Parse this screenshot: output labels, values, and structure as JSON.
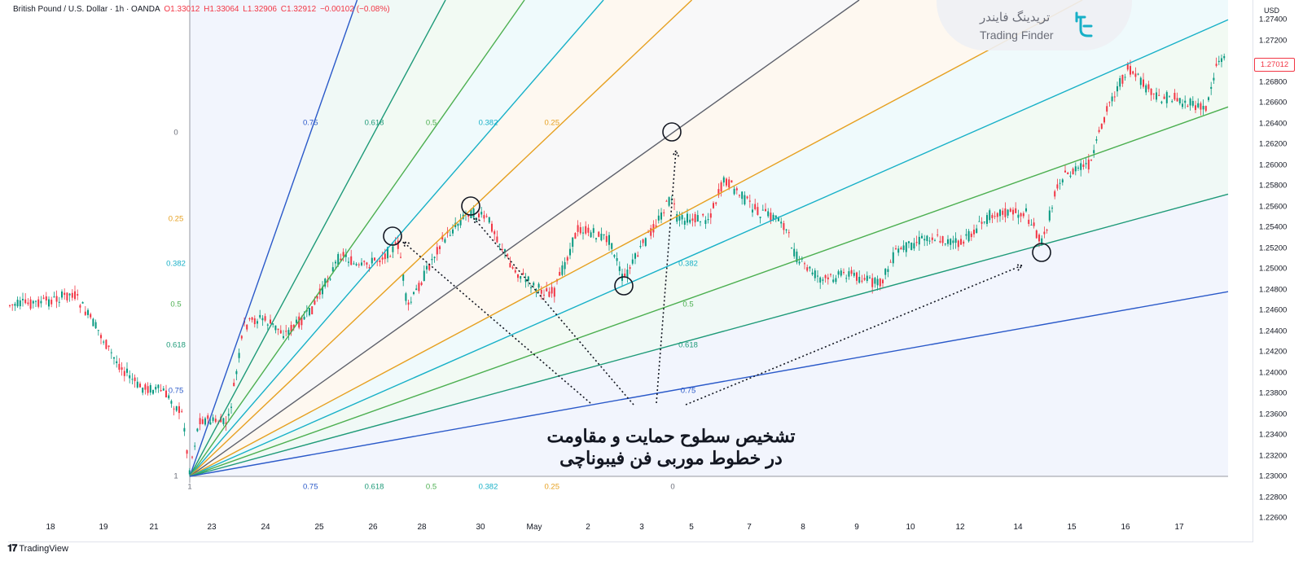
{
  "symbol_bar": {
    "name": "British Pound / U.S. Dollar · 1h · OANDA",
    "open": "O1.33012",
    "high": "H1.33064",
    "low": "L1.32906",
    "close": "C1.32912",
    "change": "−0.00102 (−0.08%)"
  },
  "price_axis": {
    "currency": "USD",
    "current_price": "1.27012",
    "labels": [
      "1.27400",
      "1.27200",
      "1.26800",
      "1.26600",
      "1.26400",
      "1.26200",
      "1.26000",
      "1.25800",
      "1.25600",
      "1.25400",
      "1.25200",
      "1.25000",
      "1.24800",
      "1.24600",
      "1.24400",
      "1.24200",
      "1.24000",
      "1.23800",
      "1.23600",
      "1.23400",
      "1.23200",
      "1.23000",
      "1.22800",
      "1.22600"
    ]
  },
  "time_axis": {
    "labels": [
      "18",
      "19",
      "21",
      "23",
      "24",
      "25",
      "26",
      "28",
      "30",
      "May",
      "2",
      "3",
      "5",
      "7",
      "8",
      "9",
      "10",
      "12",
      "14",
      "15",
      "16",
      "17"
    ]
  },
  "fib_fan": {
    "left_levels": [
      "0",
      "0.25",
      "0.382",
      "0.5",
      "0.618",
      "0.75",
      "1"
    ],
    "top_levels": [
      "0.75",
      "0.618",
      "0.5",
      "0.382",
      "0.25"
    ],
    "bottom_levels": [
      "1",
      "0.75",
      "0.618",
      "0.5",
      "0.382",
      "0.25",
      "0"
    ],
    "right_levels": [
      "0.382",
      "0.5",
      "0.618",
      "0.75"
    ],
    "colors": {
      "0.75": "#2a59c9",
      "0.618": "#1e9a78",
      "0.5": "#4caf50",
      "0.382": "#17b0c7",
      "0.25": "#e6a020",
      "0": "#787b86"
    }
  },
  "caption": {
    "line1": "تشخیص سطوح حمایت و مقاومت",
    "line2": "در خطوط موربی فن فیبوناچی"
  },
  "watermark": {
    "fa": "تریدینگ فایندر",
    "en": "Trading Finder"
  },
  "footer": {
    "brand": "TradingView"
  },
  "colors": {
    "up": "#089981",
    "down": "#f23645"
  }
}
